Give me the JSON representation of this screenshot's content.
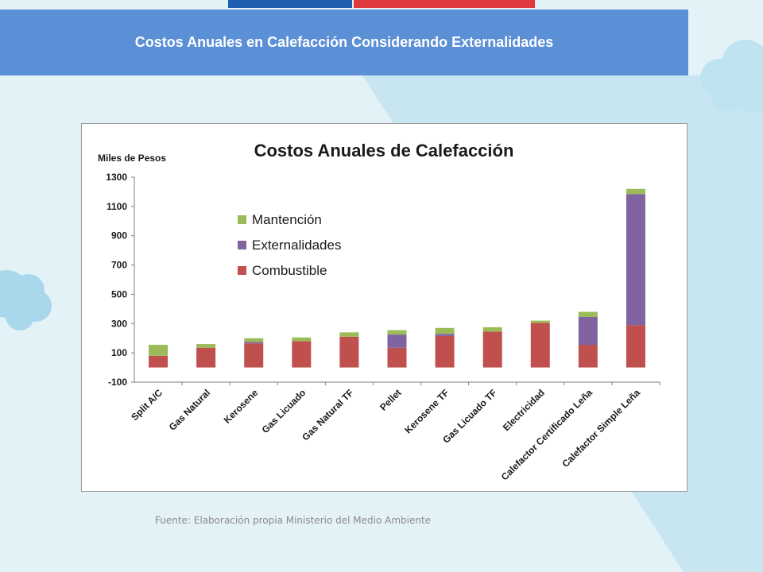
{
  "slide": {
    "title": "Costos Anuales en Calefacción Considerando Externalidades",
    "source": "Fuente: Elaboración propia Ministerio del Medio Ambiente"
  },
  "colors": {
    "background": "#e3f2f7",
    "title_bar": "#5b8fd6",
    "flag_blue": "#1f5fb0",
    "flag_red": "#e0393e",
    "cloud": "#bfe3f1"
  },
  "chart_data": {
    "type": "bar",
    "stacked": true,
    "title": "Costos Anuales de Calefacción",
    "ylabel": "Miles de Pesos",
    "ylim": [
      -100,
      1300
    ],
    "yticks": [
      1300,
      1100,
      900,
      700,
      500,
      300,
      100,
      -100
    ],
    "legend_position": "top-left",
    "categories": [
      "Split A/C",
      "Gas Natural",
      "Kerosene",
      "Gas Licuado",
      "Gas Natural TF",
      "Pellet",
      "Kerosene TF",
      "Gas Licuado TF",
      "Electricidad",
      "Calefactor Certificado Leña",
      "Calefactor Simple Leña"
    ],
    "series": [
      {
        "name": "Combustible",
        "color": "#c0504d",
        "values": [
          80,
          135,
          165,
          180,
          210,
          135,
          215,
          245,
          305,
          155,
          290
        ]
      },
      {
        "name": "Externalidades",
        "color": "#8064a2",
        "values": [
          0,
          0,
          10,
          0,
          0,
          90,
          15,
          0,
          0,
          190,
          895
        ]
      },
      {
        "name": "Mantención",
        "color": "#9bbb59",
        "values": [
          75,
          25,
          25,
          25,
          30,
          30,
          40,
          30,
          15,
          35,
          35
        ]
      }
    ],
    "legend_order": [
      "Mantención",
      "Externalidades",
      "Combustible"
    ]
  }
}
